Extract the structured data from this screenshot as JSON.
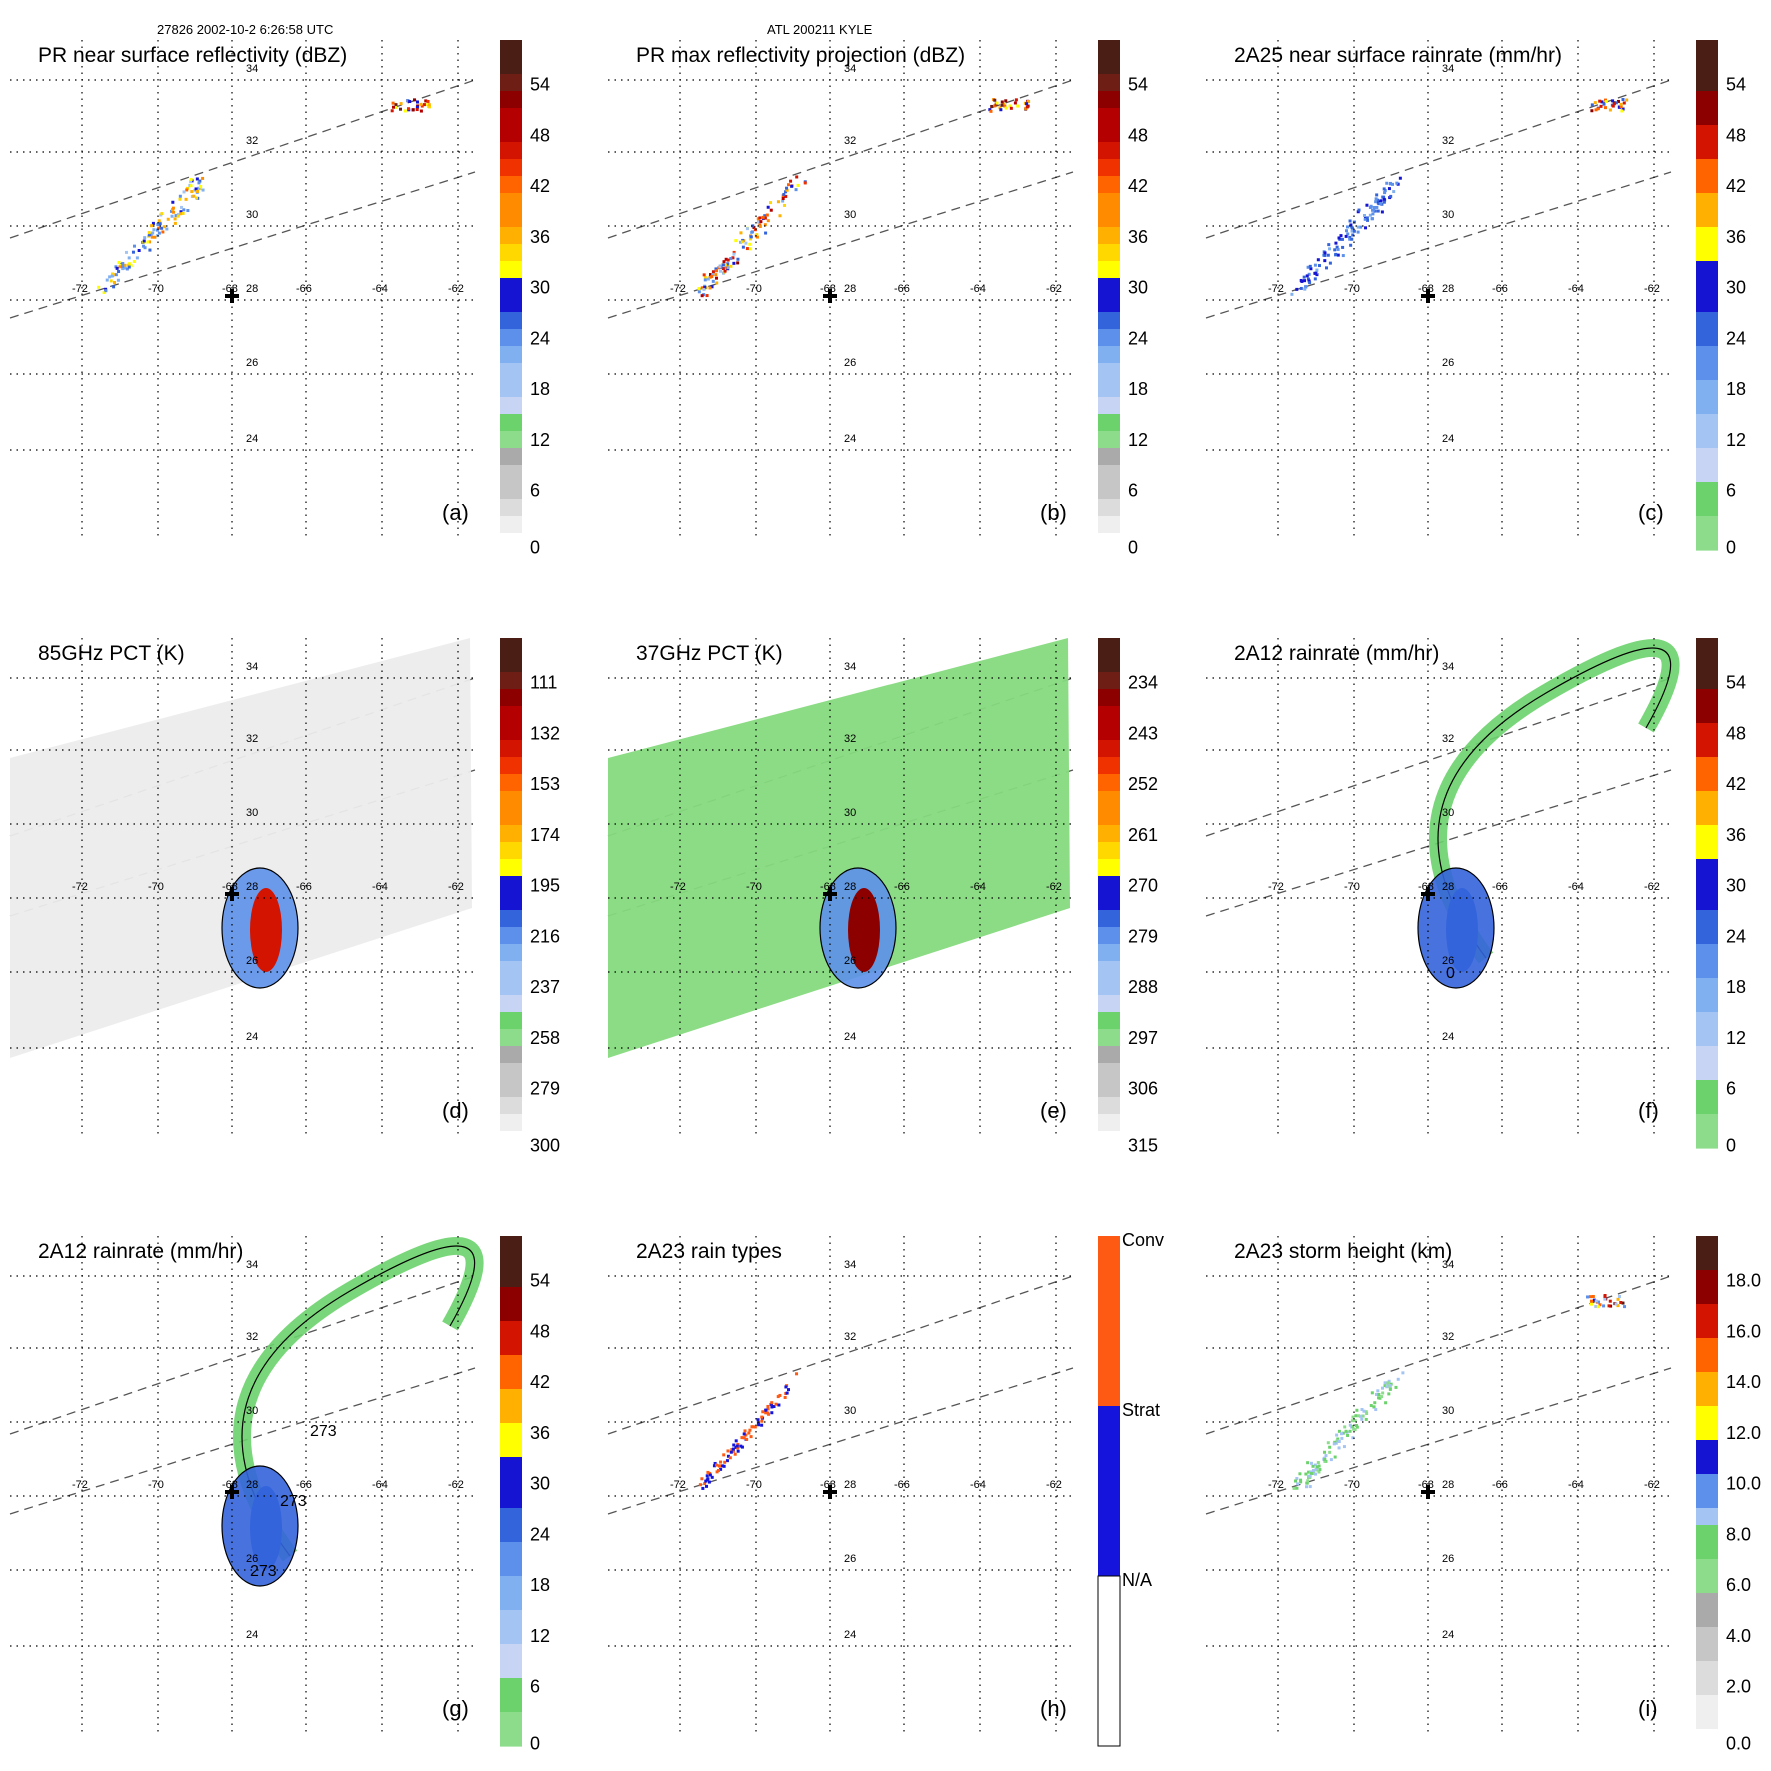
{
  "header": {
    "orbit_info": "27826 2002-10-2 6:26:58 UTC",
    "storm_info": "ATL 200211 KYLE"
  },
  "map": {
    "lon_labels": [
      "-72",
      "-70",
      "-68",
      "-66",
      "-64",
      "-62"
    ],
    "lat_labels": [
      "34",
      "32",
      "30",
      "28",
      "26",
      "24"
    ],
    "center_marker": "cross"
  },
  "colors": {
    "scale": [
      "#ffffff",
      "#efefef",
      "#dcdcdc",
      "#c6c6c6",
      "#aaaaaa",
      "#8cdc8c",
      "#6cd26c",
      "#c8d4f4",
      "#a4c4f4",
      "#80b0f0",
      "#5c90ea",
      "#3464dc",
      "#1414d2",
      "#ffff00",
      "#ffd800",
      "#ffb000",
      "#ff8c00",
      "#ff6400",
      "#f03200",
      "#d21400",
      "#b40000",
      "#8c0000",
      "#6e1e14",
      "#4a1e14"
    ],
    "contour": "#000000",
    "dash": "#555555",
    "rain_types": {
      "conv": "#ff5a14",
      "strat": "#1414dc",
      "na": "#ffffff"
    }
  },
  "chart_data": [
    {
      "id": "a",
      "type": "heatmap",
      "title": "PR near surface reflectivity (dBZ)",
      "panel_label": "(a)",
      "colorbar": {
        "ticks": [
          "54",
          "48",
          "42",
          "36",
          "30",
          "24",
          "18",
          "12",
          "6",
          "0"
        ],
        "min": 0,
        "max": 60,
        "style": "reflectivity"
      },
      "swath": "pr",
      "fields": [
        {
          "kind": "pr",
          "intensity": 0.4
        }
      ]
    },
    {
      "id": "b",
      "type": "heatmap",
      "title": "PR max reflectivity projection (dBZ)",
      "panel_label": "(b)",
      "colorbar": {
        "ticks": [
          "54",
          "48",
          "42",
          "36",
          "30",
          "24",
          "18",
          "12",
          "6",
          "0"
        ],
        "min": 0,
        "max": 60,
        "style": "reflectivity"
      },
      "swath": "pr",
      "fields": [
        {
          "kind": "pr",
          "intensity": 0.55
        }
      ]
    },
    {
      "id": "c",
      "type": "heatmap",
      "title": "2A25 near surface rainrate (mm/hr)",
      "panel_label": "(c)",
      "colorbar": {
        "ticks": [
          "54",
          "48",
          "42",
          "36",
          "30",
          "24",
          "18",
          "12",
          "6",
          "0"
        ],
        "min": 0,
        "max": 60,
        "style": "rain"
      },
      "swath": "pr",
      "fields": [
        {
          "kind": "pr",
          "intensity": 0.2
        }
      ]
    },
    {
      "id": "d",
      "type": "heatmap",
      "title": "85GHz PCT (K)",
      "panel_label": "(d)",
      "colorbar": {
        "ticks": [
          "111",
          "132",
          "153",
          "174",
          "195",
          "216",
          "237",
          "258",
          "279",
          "300"
        ],
        "min": 90,
        "max": 300,
        "style": "pct"
      },
      "swath": "tmi",
      "background": "gray",
      "fields": [
        {
          "kind": "core",
          "intensity": 0.8
        }
      ]
    },
    {
      "id": "e",
      "type": "heatmap",
      "title": "37GHz PCT (K)",
      "panel_label": "(e)",
      "colorbar": {
        "ticks": [
          "234",
          "243",
          "252",
          "261",
          "270",
          "279",
          "288",
          "297",
          "306",
          "315"
        ],
        "min": 225,
        "max": 315,
        "style": "pct"
      },
      "swath": "tmi",
      "background": "green",
      "fields": [
        {
          "kind": "core",
          "intensity": 0.9
        }
      ]
    },
    {
      "id": "f",
      "type": "heatmap",
      "title": "2A12 rainrate (mm/hr)",
      "panel_label": "(f)",
      "colorbar": {
        "ticks": [
          "54",
          "48",
          "42",
          "36",
          "30",
          "24",
          "18",
          "12",
          "6",
          "0"
        ],
        "min": 0,
        "max": 60,
        "style": "rain"
      },
      "swath": "tmi",
      "fields": [
        {
          "kind": "band",
          "intensity": 0.3
        },
        {
          "kind": "core",
          "intensity": 0.45
        }
      ],
      "contour_labels": [
        "0"
      ]
    },
    {
      "id": "g",
      "type": "heatmap",
      "title": "2A12 rainrate (mm/hr)",
      "panel_label": "(g)",
      "colorbar": {
        "ticks": [
          "54",
          "48",
          "42",
          "36",
          "30",
          "24",
          "18",
          "12",
          "6",
          "0"
        ],
        "min": 0,
        "max": 60,
        "style": "rain"
      },
      "swath": "tmi",
      "fields": [
        {
          "kind": "band",
          "intensity": 0.3
        },
        {
          "kind": "core",
          "intensity": 0.45
        }
      ],
      "contour_labels": [
        "273",
        "273",
        "273"
      ]
    },
    {
      "id": "h",
      "type": "heatmap",
      "title": "2A23 rain types",
      "panel_label": "(h)",
      "colorbar": {
        "ticks": [
          "Conv",
          "Strat",
          "N/A"
        ],
        "style": "categorical"
      },
      "swath": "pr",
      "fields": [
        {
          "kind": "types"
        }
      ]
    },
    {
      "id": "i",
      "type": "heatmap",
      "title": "2A23 storm height (km)",
      "panel_label": "(i)",
      "colorbar": {
        "ticks": [
          "18.0",
          "16.0",
          "14.0",
          "12.0",
          "10.0",
          "8.0",
          "6.0",
          "4.0",
          "2.0",
          "0.0"
        ],
        "min": 0,
        "max": 20,
        "style": "height"
      },
      "swath": "pr",
      "fields": [
        {
          "kind": "pr",
          "intensity": 0.15
        }
      ]
    }
  ]
}
